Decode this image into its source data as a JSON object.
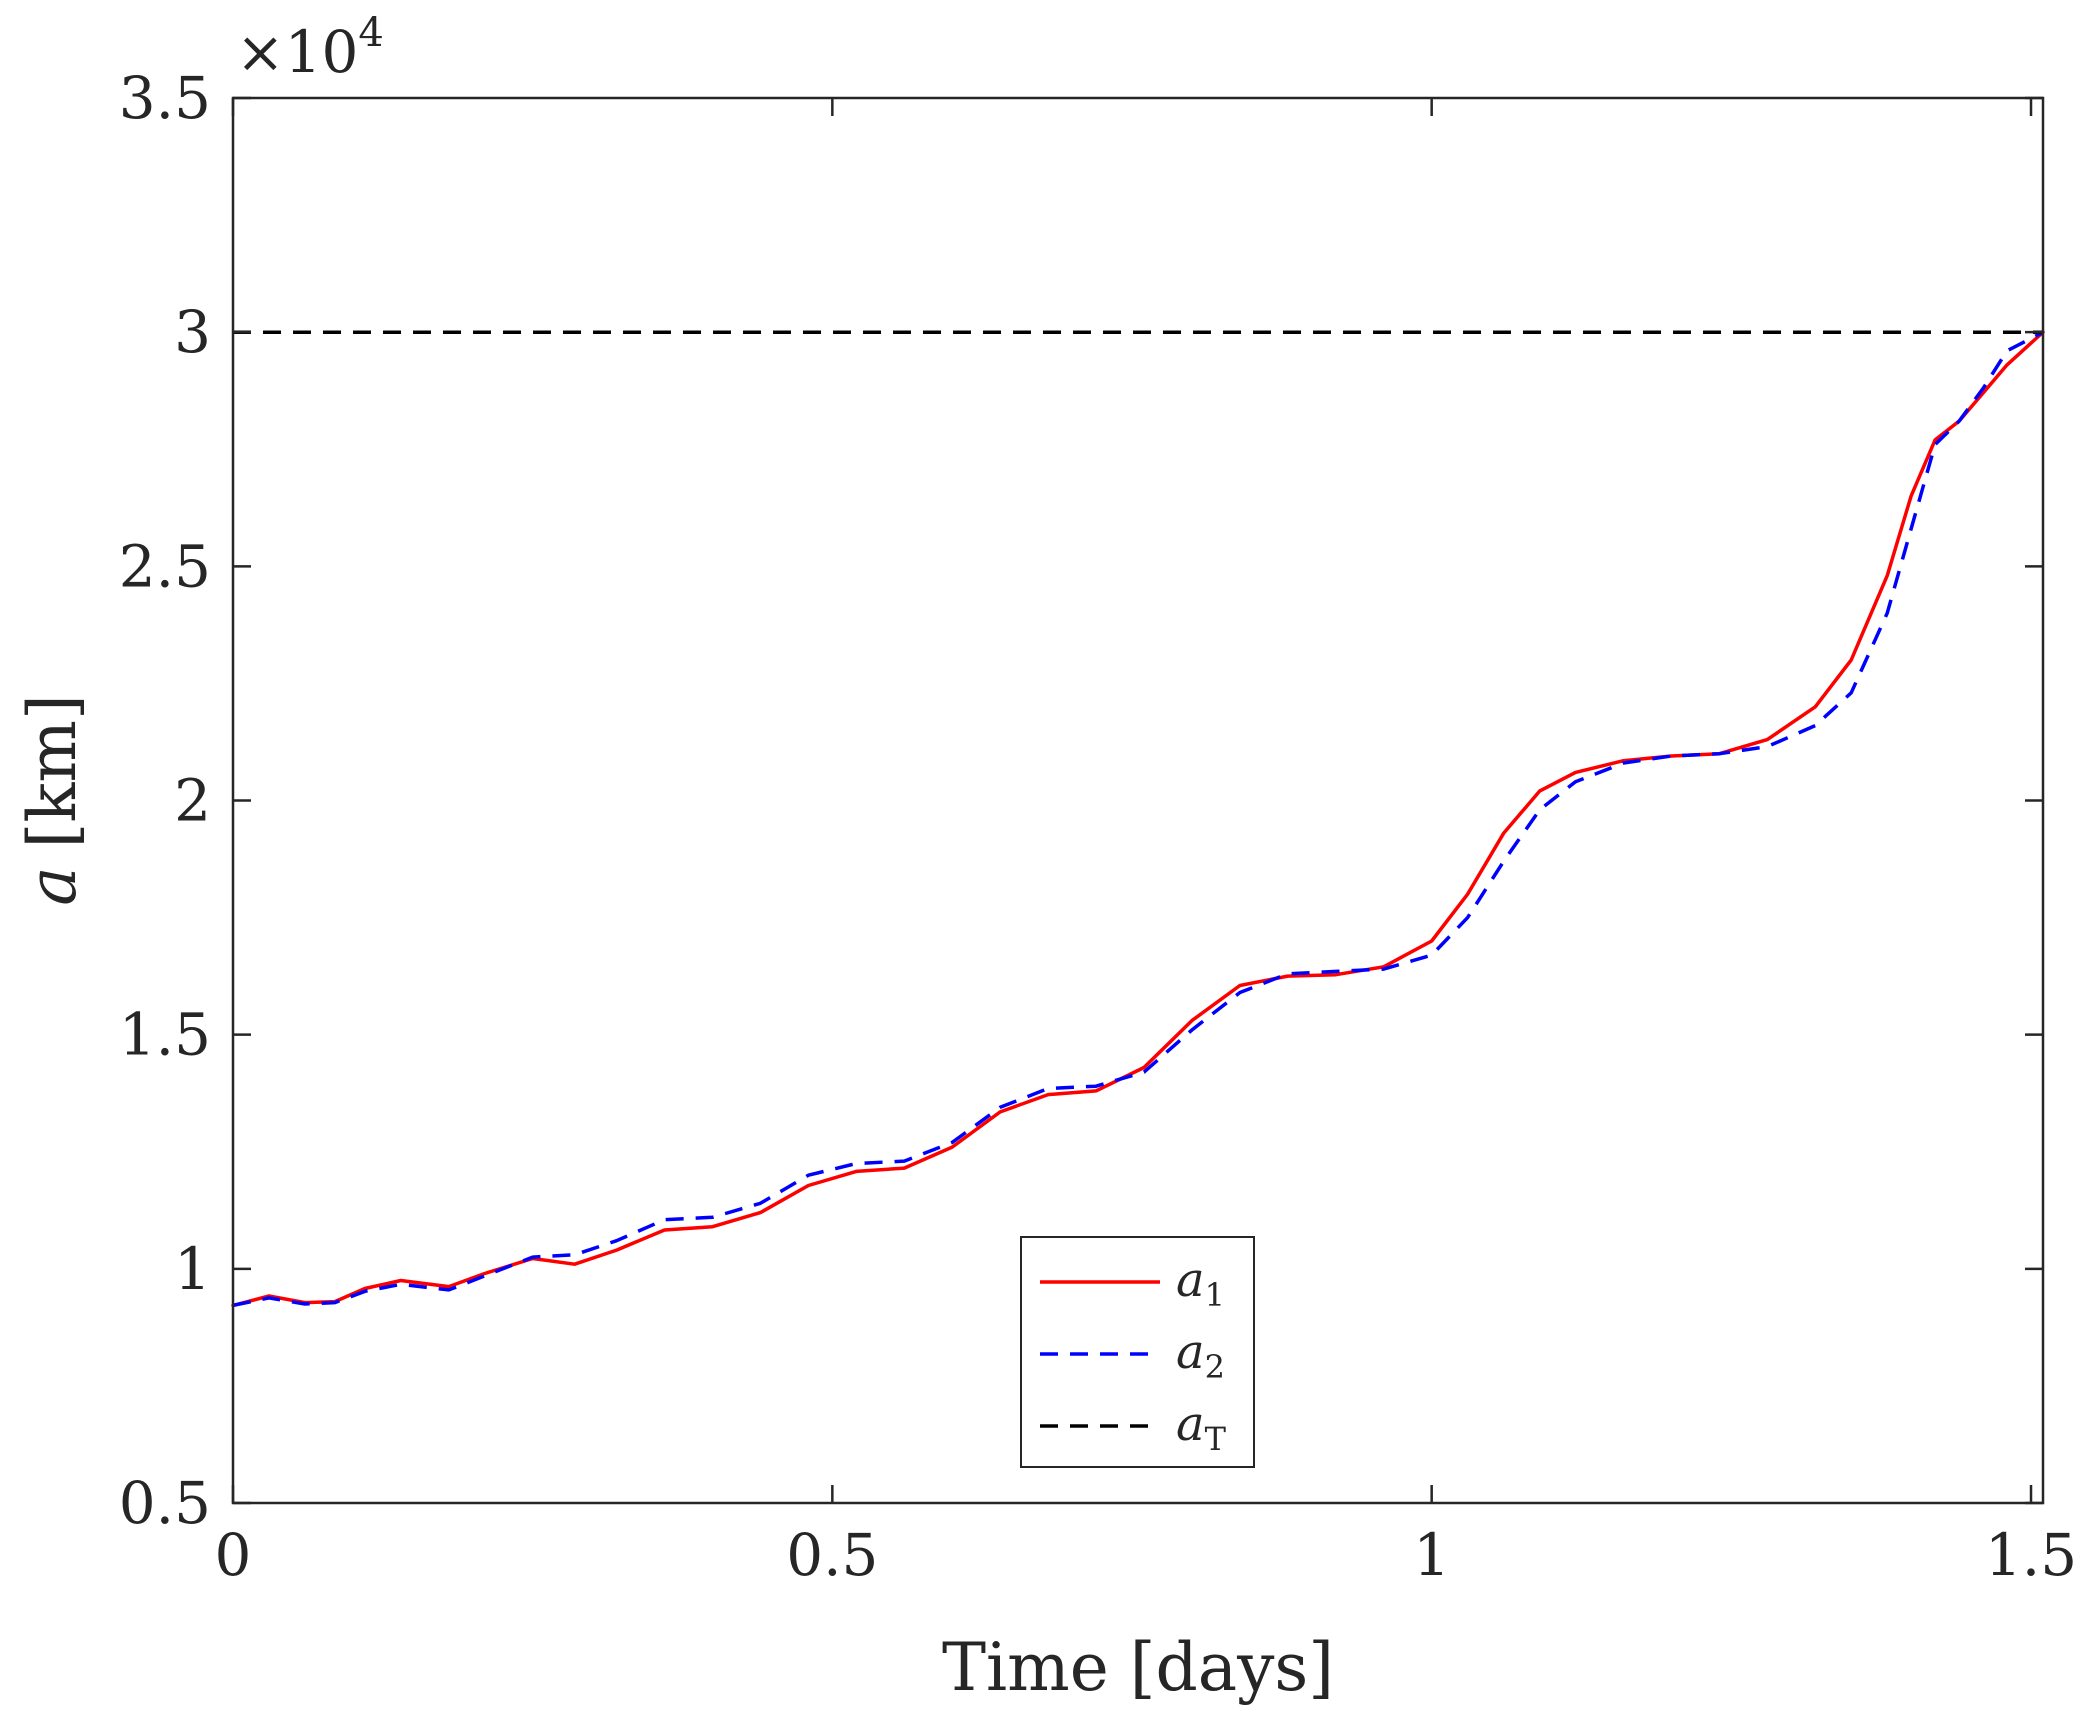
{
  "chart_data": {
    "type": "line",
    "xlabel": "Time [days]",
    "ylabel_symbol": "a",
    "ylabel_unit": "[km]",
    "y_multiplier": "×10",
    "y_multiplier_exponent": "4",
    "xlim": [
      0,
      1.51
    ],
    "ylim": [
      0.5,
      3.5
    ],
    "x_ticks": [
      0,
      0.5,
      1,
      1.5
    ],
    "x_tick_labels": [
      "0",
      "0.5",
      "1",
      "1.5"
    ],
    "y_ticks": [
      0.5,
      1,
      1.5,
      2,
      2.5,
      3,
      3.5
    ],
    "y_tick_labels": [
      "0.5",
      "1",
      "1.5",
      "2",
      "2.5",
      "3",
      "3.5"
    ],
    "grid": false,
    "legend_position": "bottom-center",
    "series": [
      {
        "name": "a",
        "name_subscript": "1",
        "color": "#ff0000",
        "dash": "solid",
        "x": [
          0,
          0.03,
          0.06,
          0.085,
          0.11,
          0.14,
          0.18,
          0.21,
          0.25,
          0.285,
          0.32,
          0.36,
          0.4,
          0.44,
          0.48,
          0.52,
          0.56,
          0.6,
          0.64,
          0.68,
          0.72,
          0.76,
          0.8,
          0.84,
          0.88,
          0.92,
          0.96,
          1.0,
          1.03,
          1.06,
          1.09,
          1.12,
          1.16,
          1.2,
          1.24,
          1.28,
          1.32,
          1.35,
          1.38,
          1.4,
          1.42,
          1.44,
          1.46,
          1.48,
          1.51
        ],
        "y": [
          0.922,
          0.942,
          0.928,
          0.93,
          0.958,
          0.975,
          0.962,
          0.99,
          1.022,
          1.01,
          1.04,
          1.083,
          1.09,
          1.12,
          1.178,
          1.208,
          1.215,
          1.26,
          1.335,
          1.372,
          1.38,
          1.43,
          1.53,
          1.605,
          1.625,
          1.628,
          1.645,
          1.7,
          1.8,
          1.93,
          2.02,
          2.06,
          2.085,
          2.095,
          2.1,
          2.13,
          2.2,
          2.3,
          2.48,
          2.65,
          2.77,
          2.81,
          2.87,
          2.93,
          3.0
        ]
      },
      {
        "name": "a",
        "name_subscript": "2",
        "color": "#0000ff",
        "dash": "dashed",
        "x": [
          0,
          0.03,
          0.06,
          0.085,
          0.11,
          0.14,
          0.18,
          0.21,
          0.25,
          0.285,
          0.32,
          0.36,
          0.4,
          0.44,
          0.48,
          0.52,
          0.56,
          0.6,
          0.64,
          0.68,
          0.72,
          0.76,
          0.8,
          0.84,
          0.88,
          0.92,
          0.96,
          1.0,
          1.03,
          1.06,
          1.09,
          1.12,
          1.16,
          1.2,
          1.24,
          1.28,
          1.32,
          1.35,
          1.38,
          1.4,
          1.42,
          1.44,
          1.46,
          1.48,
          1.51
        ],
        "y": [
          0.922,
          0.938,
          0.925,
          0.928,
          0.952,
          0.967,
          0.955,
          0.985,
          1.025,
          1.03,
          1.06,
          1.105,
          1.11,
          1.14,
          1.2,
          1.225,
          1.23,
          1.27,
          1.345,
          1.385,
          1.39,
          1.42,
          1.51,
          1.59,
          1.63,
          1.635,
          1.64,
          1.67,
          1.75,
          1.87,
          1.98,
          2.04,
          2.08,
          2.095,
          2.1,
          2.115,
          2.16,
          2.23,
          2.4,
          2.58,
          2.76,
          2.81,
          2.88,
          2.96,
          3.0
        ]
      },
      {
        "name": "a",
        "name_subscript": "T",
        "color": "#000000",
        "dash": "dashed",
        "x": [
          0,
          1.51
        ],
        "y": [
          3.0,
          3.0
        ]
      }
    ]
  }
}
